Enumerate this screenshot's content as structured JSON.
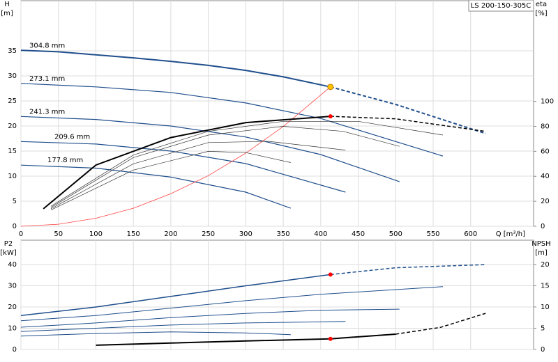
{
  "chart_data": [
    {
      "type": "line",
      "title": "LS 200-150-305C",
      "y_label": [
        "H",
        "[m]"
      ],
      "y2_label": [
        "eta",
        "[%]"
      ],
      "x_label": "Q [m³/h]",
      "xlim": [
        0,
        684
      ],
      "xticks": [
        0,
        50,
        100,
        150,
        200,
        250,
        300,
        350,
        400,
        450,
        500,
        550,
        600
      ],
      "ylim": [
        0,
        45
      ],
      "yticks": [
        0,
        5,
        10,
        15,
        20,
        25,
        30,
        35
      ],
      "y2lim": [
        0,
        180.6
      ],
      "y2ticks": [
        0,
        20,
        40,
        60,
        80,
        100
      ],
      "grid": true,
      "series": [
        {
          "name": "304.8 mm",
          "color": "#1f4e8c",
          "width": 2,
          "x": [
            0,
            50,
            100,
            150,
            200,
            250,
            300,
            350,
            413
          ],
          "values": [
            35.1,
            34.8,
            34.2,
            33.6,
            32.9,
            32.1,
            31.1,
            29.8,
            27.8
          ]
        },
        {
          "name": "273.1 mm",
          "color": "#1f4e8c",
          "width": 1.2,
          "x": [
            0,
            100,
            200,
            300,
            400,
            563
          ],
          "values": [
            28.5,
            27.8,
            26.7,
            24.6,
            21.5,
            14
          ]
        },
        {
          "name": "241.3 mm",
          "color": "#1f4e8c",
          "width": 1.2,
          "x": [
            0,
            100,
            200,
            300,
            400,
            505
          ],
          "values": [
            21.9,
            21.3,
            20,
            17.8,
            14.3,
            8.9
          ]
        },
        {
          "name": "209.6 mm",
          "color": "#1f4e8c",
          "width": 1.2,
          "x": [
            0,
            100,
            200,
            300,
            433
          ],
          "values": [
            16.9,
            16.4,
            15,
            12.5,
            6.8
          ]
        },
        {
          "name": "177.8 mm",
          "color": "#1f4e8c",
          "width": 1.2,
          "x": [
            0,
            100,
            200,
            300,
            360
          ],
          "values": [
            12.2,
            11.6,
            9.8,
            6.8,
            3.6
          ]
        },
        {
          "color": "#1f4e8c",
          "width": 2,
          "dashed": true,
          "x": [
            413,
            500,
            620
          ],
          "values": [
            27.8,
            24.3,
            18.5
          ]
        },
        {
          "color": "#ff4040",
          "width": 0.8,
          "x": [
            0,
            50,
            100,
            150,
            200,
            250,
            300,
            350,
            413
          ],
          "values": [
            0,
            0.4,
            1.6,
            3.6,
            6.5,
            10.1,
            14.6,
            19.9,
            27.8
          ]
        },
        {
          "axis": "y2",
          "color": "#000000",
          "width": 2,
          "x": [
            30,
            100,
            200,
            300,
            413
          ],
          "values": [
            14,
            49,
            71,
            83,
            88
          ]
        },
        {
          "axis": "y2",
          "color": "#000000",
          "width": 1.5,
          "dashed": true,
          "x": [
            413,
            500,
            620
          ],
          "values": [
            88,
            86,
            76
          ]
        },
        {
          "axis": "y2",
          "color": "#333333",
          "width": 0.7,
          "x": [
            40,
            150,
            250,
            350,
            450,
            563
          ],
          "values": [
            16,
            57,
            76,
            84,
            84,
            73
          ]
        },
        {
          "axis": "y2",
          "color": "#333333",
          "width": 0.7,
          "x": [
            40,
            150,
            250,
            350,
            430,
            505
          ],
          "values": [
            15,
            55,
            73,
            80,
            76,
            64
          ]
        },
        {
          "axis": "y2",
          "color": "#333333",
          "width": 0.7,
          "x": [
            40,
            150,
            250,
            330,
            433
          ],
          "values": [
            14,
            50,
            67,
            68,
            61
          ]
        },
        {
          "axis": "y2",
          "color": "#333333",
          "width": 0.7,
          "x": [
            40,
            150,
            250,
            300,
            360
          ],
          "values": [
            13,
            45,
            60,
            59,
            51
          ]
        }
      ],
      "points": [
        {
          "x": 413,
          "value": 27.8,
          "color": "#ffc000"
        },
        {
          "x": 413,
          "value": 88,
          "axis": "y2",
          "color": "#ff0000"
        }
      ]
    },
    {
      "type": "line",
      "y_label": [
        "P2",
        "[kW]"
      ],
      "y2_label": [
        "NPSH",
        "[m]"
      ],
      "xlim": [
        0,
        684
      ],
      "ylim": [
        0,
        51.5
      ],
      "yticks": [
        0,
        10,
        20,
        30,
        40
      ],
      "y2lim": [
        0,
        25.7
      ],
      "y2ticks": [
        0,
        5,
        10,
        15,
        20
      ],
      "grid": true,
      "series": [
        {
          "color": "#1f4e8c",
          "width": 1.5,
          "x": [
            0,
            100,
            200,
            300,
            413
          ],
          "values": [
            16,
            20,
            25,
            30,
            35.3
          ]
        },
        {
          "color": "#1f4e8c",
          "width": 1.5,
          "dashed": true,
          "x": [
            413,
            500,
            620
          ],
          "values": [
            35.3,
            38.5,
            40
          ]
        },
        {
          "color": "#1f4e8c",
          "width": 1,
          "x": [
            0,
            100,
            200,
            300,
            400,
            563
          ],
          "values": [
            13.5,
            16,
            19.5,
            23,
            26,
            29.6
          ]
        },
        {
          "color": "#1f4e8c",
          "width": 1,
          "x": [
            0,
            100,
            200,
            300,
            400,
            505
          ],
          "values": [
            10.5,
            12.5,
            15,
            17,
            18.5,
            19
          ]
        },
        {
          "color": "#1f4e8c",
          "width": 1,
          "x": [
            0,
            100,
            200,
            300,
            433
          ],
          "values": [
            8.5,
            10,
            11.5,
            12.5,
            13.2
          ]
        },
        {
          "color": "#1f4e8c",
          "width": 1,
          "x": [
            0,
            100,
            200,
            300,
            360
          ],
          "values": [
            6.3,
            7.5,
            8.3,
            7.8,
            7
          ]
        },
        {
          "axis": "y2",
          "color": "#000000",
          "width": 2,
          "x": [
            100,
            200,
            300,
            413,
            500
          ],
          "values": [
            1,
            1.5,
            2,
            2.5,
            3.6
          ]
        },
        {
          "axis": "y2",
          "color": "#000000",
          "width": 1.5,
          "dashed": true,
          "x": [
            500,
            560,
            620
          ],
          "values": [
            3.6,
            5.2,
            8.5
          ]
        }
      ],
      "points": [
        {
          "x": 413,
          "value": 35.3,
          "color": "#ff0000"
        },
        {
          "x": 413,
          "value": 2.5,
          "axis": "y2",
          "color": "#ff0000"
        }
      ]
    }
  ]
}
